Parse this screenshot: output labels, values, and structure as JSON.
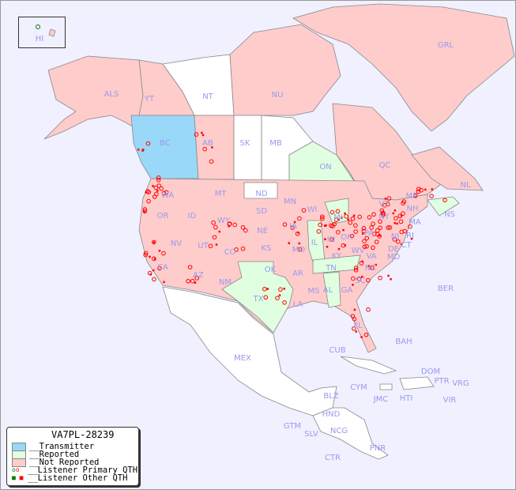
{
  "legend": {
    "title": "VA7PL-28239",
    "items": [
      {
        "label": "__Transmitter",
        "color": "#99d8f8"
      },
      {
        "label": "__Reported",
        "color": "#e0ffe0"
      },
      {
        "label": "__Not Reported",
        "color": "#ffcccc"
      },
      {
        "label": "__Listener Primary QTH",
        "colors": [
          "#008000",
          "#ff0000"
        ],
        "symbol": "circle"
      },
      {
        "label": "__Listener Other QTH",
        "colors": [
          "#008000",
          "#ff0000"
        ],
        "symbol": "square"
      }
    ]
  },
  "colors": {
    "ocean": "#f0f0ff",
    "transmitter": "#99d8f8",
    "reported": "#e0ffe0",
    "not_reported": "#ffcccc",
    "marker": "#ff0000",
    "label": "#9999ee"
  },
  "regions": {
    "transmitter": [
      "BC"
    ],
    "reported": [
      "ON",
      "NS",
      "TX",
      "IL",
      "TN",
      "AL",
      "MI"
    ],
    "not_reported": [
      "ALS",
      "YT",
      "NU",
      "GRL",
      "AB",
      "QC",
      "NL",
      "WA",
      "OR",
      "CA",
      "NV",
      "ID",
      "MT",
      "WY",
      "UT",
      "AZ",
      "CO",
      "NM",
      "SD",
      "NE",
      "KS",
      "OK",
      "MN",
      "IA",
      "MO",
      "AR",
      "LA",
      "WI",
      "MS",
      "IN",
      "KY",
      "GA",
      "OH",
      "WV",
      "PA",
      "NY",
      "VA",
      "NC",
      "SC",
      "FL",
      "ME",
      "VT",
      "NH",
      "MA",
      "CT",
      "RI",
      "NJ",
      "DE",
      "MD",
      "HI"
    ]
  },
  "labels": {
    "HI": "HI",
    "ALS": "ALS",
    "YT": "YT",
    "NT": "NT",
    "NU": "NU",
    "GRL": "GRL",
    "BC": "BC",
    "AB": "AB",
    "SK": "SK",
    "MB": "MB",
    "ON": "ON",
    "QC": "QC",
    "NL": "NL",
    "NS": "NS",
    "WA": "WA",
    "OR": "OR",
    "CA": "CA",
    "NV": "NV",
    "ID": "ID",
    "MT": "MT",
    "WY": "WY",
    "UT": "UT",
    "AZ": "AZ",
    "CO": "CO",
    "NM": "NM",
    "ND": "ND",
    "SD": "SD",
    "NE": "NE",
    "KS": "KS",
    "OK": "OK",
    "TX": "TX",
    "MN": "MN",
    "IA": "IA",
    "MO": "MO",
    "AR": "AR",
    "LA": "LA",
    "WI": "WI",
    "IL": "IL",
    "MS": "MS",
    "MI": "MI",
    "IN": "IN",
    "KY": "KY",
    "TN": "TN",
    "AL": "AL",
    "GA": "GA",
    "OH": "OH",
    "WV": "WV",
    "PA": "PA",
    "NY": "NY",
    "VA": "VA",
    "NC": "NC",
    "SC": "SC",
    "FL": "FL",
    "ME": "ME",
    "VT": "VT",
    "NH": "NH",
    "MA": "MA",
    "CT": "CT",
    "RI": "RI",
    "NJ": "NJ",
    "DE": "DE",
    "MD": "MD",
    "MEX": "MEX",
    "CUB": "CUB",
    "BAH": "BAH",
    "BER": "BER",
    "CYM": "CYM",
    "JMC": "JMC",
    "HTI": "HTI",
    "DOM": "DOM",
    "PTR": "PTR",
    "VRG": "VRG",
    "VIR": "VIR",
    "BLZ": "BLZ",
    "GTM": "GTM",
    "HND": "HND",
    "SLV": "SLV",
    "NCG": "NCG",
    "CTR": "CTR",
    "PNR": "PNR"
  }
}
